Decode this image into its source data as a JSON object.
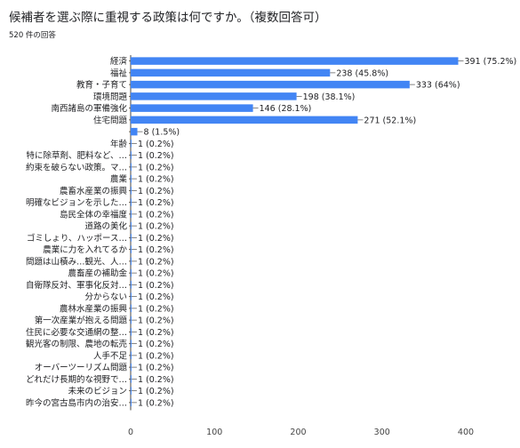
{
  "header": {
    "title": "候補者を選ぶ際に重視する政策は何ですか。（複数回答可）",
    "response_count": "520 件の回答"
  },
  "colors": {
    "bar": "#4285f4",
    "axis": "#444444",
    "grid": "#dddddd"
  },
  "chart_data": {
    "type": "bar",
    "orientation": "horizontal",
    "title": "候補者を選ぶ際に重視する政策は何ですか。（複数回答可）",
    "xlabel": "",
    "ylabel": "",
    "xlim": [
      0,
      400
    ],
    "x_ticks": [
      "0",
      "100",
      "200",
      "300",
      "400"
    ],
    "grid": false,
    "categories": [
      "経済",
      "福祉",
      "教育・子育て",
      "環境問題",
      "南西諸島の軍備強化",
      "住宅問題",
      "",
      "年齢",
      "特に除草剤、肥料など、…",
      "約束を破らない政策。マ…",
      "農業",
      "農畜水産業の振興",
      "明確なビジョンを示した…",
      "島民全体の幸福度",
      "道路の美化",
      "ゴミしょり、ハッポース…",
      "農業に力を入れてるか",
      "問題は山積み…観光、人…",
      "農畜産の補助金",
      "自衛隊反対、軍事化反対…",
      "分からない",
      "農林水産業の振興",
      "第一次産業が抱える問題",
      "住民に必要な交通網の整…",
      "観光客の制限、農地の転売",
      "人手不足",
      "オーバーツーリズム問題",
      "どれだけ長期的な視野で…",
      "未来のビジョン",
      "昨今の宮古島市内の治安…"
    ],
    "values": [
      391,
      238,
      333,
      198,
      146,
      271,
      8,
      1,
      1,
      1,
      1,
      1,
      1,
      1,
      1,
      1,
      1,
      1,
      1,
      1,
      1,
      1,
      1,
      1,
      1,
      1,
      1,
      1,
      1,
      1
    ],
    "value_labels": [
      "391 (75.2%)",
      "238 (45.8%)",
      "333 (64%)",
      "198 (38.1%)",
      "146 (28.1%)",
      "271 (52.1%)",
      "8 (1.5%)",
      "1 (0.2%)",
      "1 (0.2%)",
      "1 (0.2%)",
      "1 (0.2%)",
      "1 (0.2%)",
      "1 (0.2%)",
      "1 (0.2%)",
      "1 (0.2%)",
      "1 (0.2%)",
      "1 (0.2%)",
      "1 (0.2%)",
      "1 (0.2%)",
      "1 (0.2%)",
      "1 (0.2%)",
      "1 (0.2%)",
      "1 (0.2%)",
      "1 (0.2%)",
      "1 (0.2%)",
      "1 (0.2%)",
      "1 (0.2%)",
      "1 (0.2%)",
      "1 (0.2%)",
      "1 (0.2%)"
    ]
  }
}
